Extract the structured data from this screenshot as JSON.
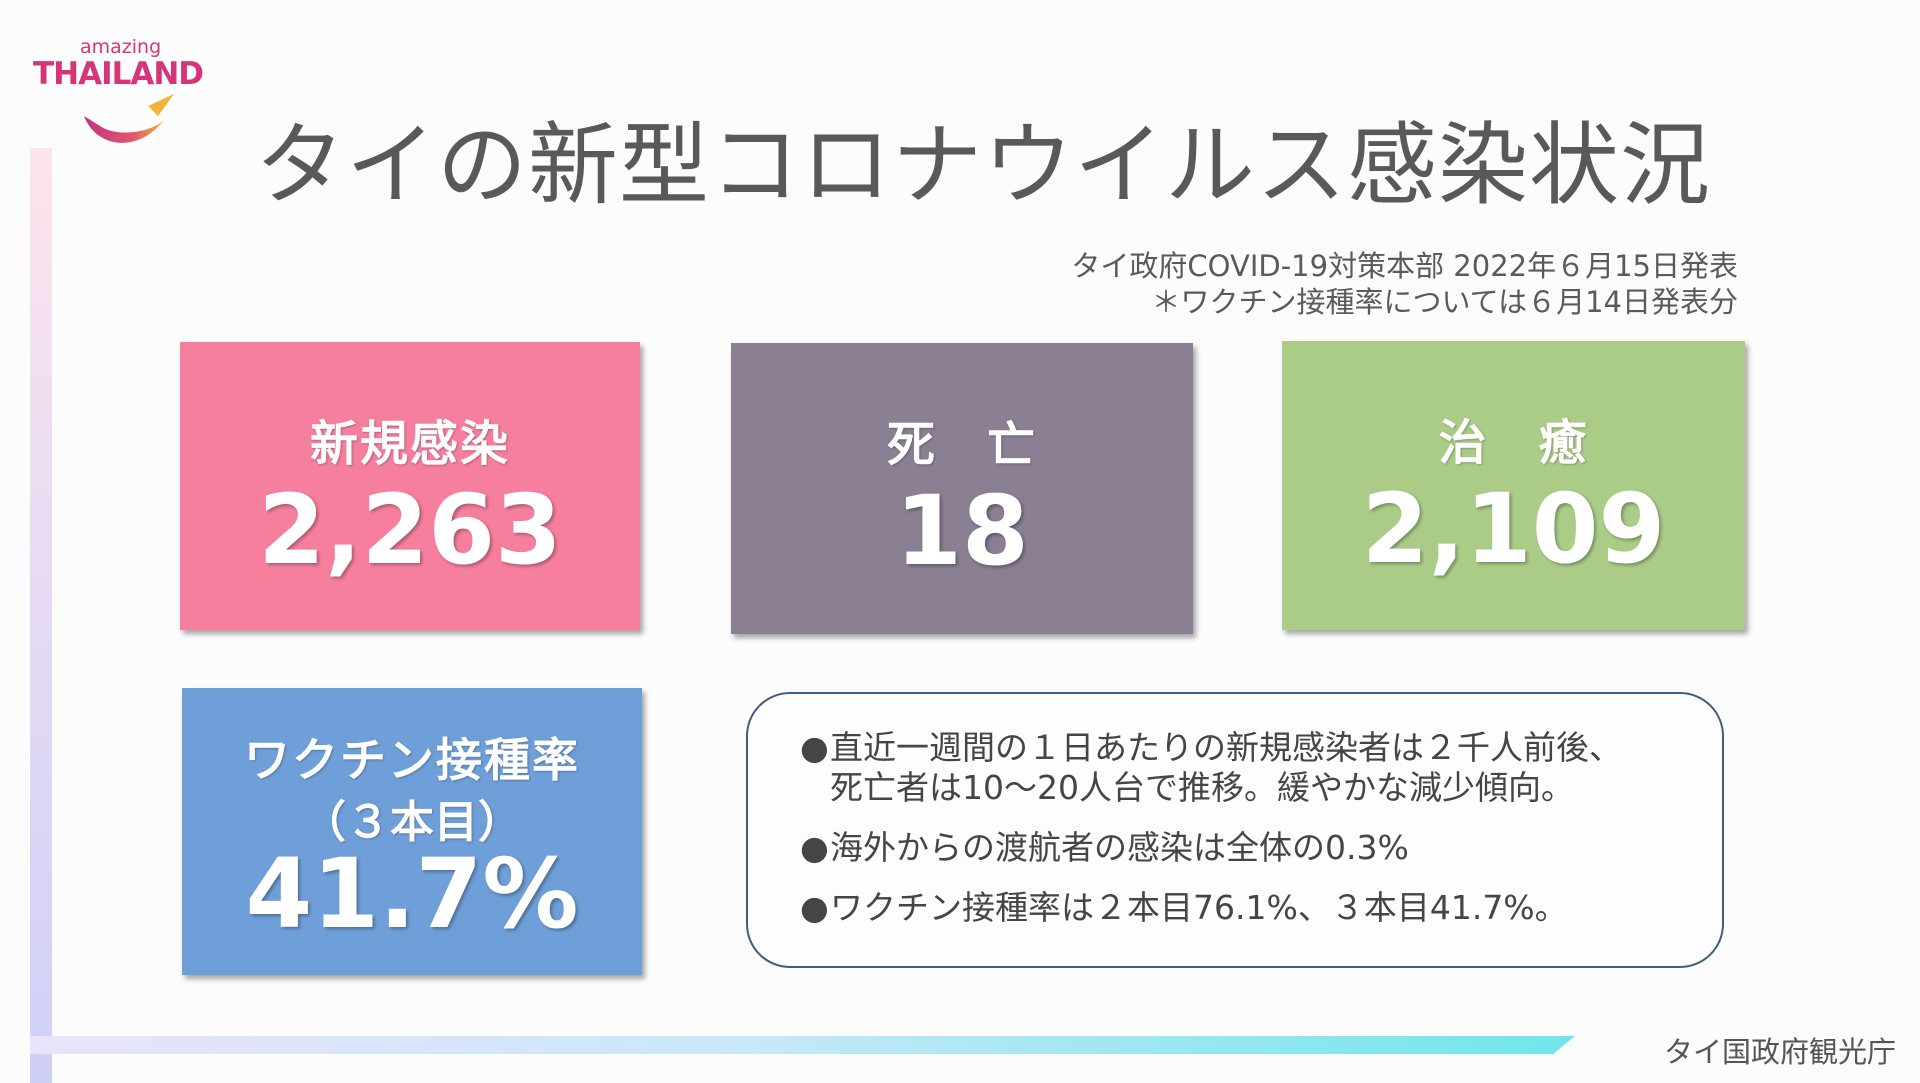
{
  "logo": {
    "top_text": "amazing",
    "main_text": "THAILAND",
    "brand_color": "#d7357a"
  },
  "title": "タイの新型コロナウイルス感染状況",
  "source": {
    "line1": "タイ政府COVID-19対策本部 2022年６月15日発表",
    "line2": "＊ワクチン接種率については６月14日発表分"
  },
  "stats": {
    "infections": {
      "label": "新規感染",
      "value": "2,263",
      "color": "#f67f9e"
    },
    "deaths": {
      "label": "死　亡",
      "value": "18",
      "color": "#8a7f93"
    },
    "recovered": {
      "label": "治　癒",
      "value": "2,109",
      "color": "#abcc87"
    },
    "vaccine": {
      "label": "ワクチン接種率",
      "sublabel": "（３本目）",
      "value": "41.7%",
      "color": "#6f9fd8"
    }
  },
  "notes": {
    "bullet": "●",
    "items": [
      "直近一週間の１日あたりの新規感染者は２千人前後、\n死亡者は10～20人台で推移。緩やかな減少傾向。",
      "海外からの渡航者の感染は全体の0.3%",
      "ワクチン接種率は２本目76.1%、３本目41.7%。"
    ]
  },
  "footer": "タイ国政府観光庁"
}
